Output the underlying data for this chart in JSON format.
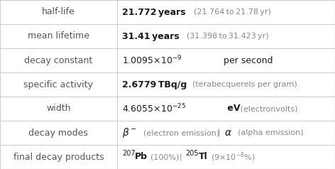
{
  "figsize": [
    4.72,
    2.38
  ],
  "dpi": 100,
  "bg_color": "#ffffff",
  "line_color": "#cccccc",
  "label_color": "#555555",
  "black": "#1a1a1a",
  "gray": "#888888",
  "col_divider": 0.349,
  "n_rows": 7,
  "labels": [
    "half-life",
    "mean lifetime",
    "decay constant",
    "specific activity",
    "width",
    "decay modes",
    "final decay products"
  ],
  "lfs": 9,
  "vfs": 9,
  "gfs": 8
}
